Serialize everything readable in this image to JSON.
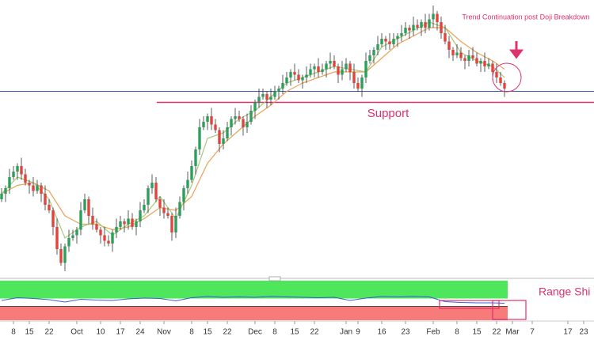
{
  "chart_data": {
    "type": "candlestick",
    "xlim": [
      -0.4,
      149.6
    ],
    "ylim": [
      0,
      100
    ],
    "up_color": "#2e9e5b",
    "down_color": "#e2433b",
    "wick_color": "#333333",
    "xticks": [
      {
        "value": 3,
        "label": "8"
      },
      {
        "value": 7,
        "label": "15"
      },
      {
        "value": 12,
        "label": "22"
      },
      {
        "value": 19,
        "label": "Oct"
      },
      {
        "value": 25,
        "label": "10"
      },
      {
        "value": 30,
        "label": "17"
      },
      {
        "value": 35,
        "label": "24"
      },
      {
        "value": 41,
        "label": "Nov"
      },
      {
        "value": 48,
        "label": "8"
      },
      {
        "value": 52,
        "label": "15"
      },
      {
        "value": 57,
        "label": "22"
      },
      {
        "value": 64,
        "label": "Dec"
      },
      {
        "value": 69,
        "label": "8"
      },
      {
        "value": 74,
        "label": "15"
      },
      {
        "value": 79,
        "label": "22"
      },
      {
        "value": 87,
        "label": "Jan"
      },
      {
        "value": 90,
        "label": "9"
      },
      {
        "value": 96,
        "label": "16"
      },
      {
        "value": 102,
        "label": "23"
      },
      {
        "value": 109,
        "label": "Feb"
      },
      {
        "value": 115,
        "label": "8"
      },
      {
        "value": 120,
        "label": "15"
      },
      {
        "value": 125,
        "label": "22"
      },
      {
        "value": 129,
        "label": "Mar"
      },
      {
        "value": 134,
        "label": "7"
      },
      {
        "value": 143,
        "label": "17"
      },
      {
        "value": 147,
        "label": "23"
      }
    ],
    "open": [
      28,
      30,
      32,
      36,
      38,
      40,
      37,
      34,
      33,
      31,
      33,
      30,
      26,
      24,
      18,
      10,
      5,
      11,
      14,
      15,
      17,
      24,
      28,
      22,
      19,
      17,
      15,
      13,
      12,
      16,
      18,
      20,
      19,
      21,
      18,
      20,
      24,
      26,
      32,
      34,
      28,
      25,
      23,
      22,
      16,
      22,
      27,
      32,
      35,
      40,
      46,
      54,
      56,
      58,
      55,
      53,
      48,
      50,
      54,
      57,
      58,
      57,
      54,
      56,
      60,
      63,
      65,
      66,
      64,
      65,
      67,
      68,
      70,
      72,
      74,
      73,
      71,
      72,
      73,
      75,
      76,
      74,
      75,
      77,
      78,
      76,
      73,
      75,
      77,
      74,
      70,
      68,
      72,
      78,
      80,
      82,
      84,
      86,
      85,
      84,
      86,
      87,
      88,
      90,
      89,
      91,
      90,
      92,
      90,
      93,
      95,
      92,
      88,
      85,
      82,
      80,
      81,
      79,
      78,
      80,
      79,
      77,
      78,
      76,
      77,
      74,
      72,
      70
    ],
    "high": [
      32,
      33,
      39,
      40,
      41,
      43,
      39,
      35,
      36,
      35,
      34,
      33,
      28,
      25,
      21,
      12,
      12,
      17,
      17,
      18,
      27,
      30,
      29,
      25,
      21,
      18,
      18,
      15,
      17,
      21,
      22,
      21,
      24,
      23,
      21,
      27,
      28,
      33,
      37,
      36,
      29,
      28,
      25,
      23,
      25,
      29,
      33,
      38,
      42,
      47,
      57,
      58,
      59,
      61,
      57,
      54,
      53,
      56,
      58,
      61,
      60,
      58,
      59,
      62,
      64,
      68,
      68,
      67,
      68,
      69,
      69,
      73,
      74,
      75,
      77,
      75,
      73,
      76,
      77,
      77,
      79,
      77,
      78,
      81,
      80,
      77,
      78,
      79,
      78,
      77,
      72,
      73,
      81,
      82,
      83,
      87,
      88,
      87,
      88,
      88,
      88,
      91,
      92,
      91,
      94,
      93,
      93,
      95,
      95,
      98,
      96,
      94,
      91,
      87,
      83,
      84,
      83,
      80,
      82,
      83,
      81,
      79,
      81,
      79,
      78,
      77,
      74,
      71
    ],
    "low": [
      27,
      27,
      30,
      35,
      35,
      35,
      33,
      30,
      29,
      30,
      27,
      24,
      23,
      15,
      8,
      4,
      2,
      9,
      13,
      12,
      15,
      23,
      19,
      17,
      16,
      12,
      11,
      11,
      9,
      14,
      17,
      16,
      17,
      17,
      15,
      18,
      23,
      23,
      30,
      27,
      22,
      21,
      21,
      13,
      14,
      21,
      24,
      30,
      34,
      37,
      44,
      53,
      53,
      53,
      52,
      45,
      46,
      49,
      51,
      55,
      56,
      51,
      52,
      55,
      57,
      61,
      64,
      61,
      62,
      64,
      64,
      66,
      69,
      69,
      71,
      70,
      68,
      70,
      72,
      72,
      72,
      73,
      72,
      75,
      75,
      70,
      71,
      74,
      71,
      68,
      67,
      65,
      70,
      77,
      77,
      80,
      83,
      82,
      82,
      83,
      83,
      85,
      87,
      86,
      87,
      89,
      87,
      88,
      89,
      90,
      89,
      86,
      84,
      79,
      78,
      79,
      78,
      75,
      76,
      78,
      76,
      74,
      74,
      75,
      71,
      70,
      69,
      65
    ],
    "close": [
      30,
      32,
      36,
      38,
      40,
      37,
      34,
      33,
      31,
      33,
      30,
      26,
      24,
      18,
      10,
      5,
      11,
      14,
      15,
      17,
      24,
      28,
      22,
      19,
      17,
      15,
      13,
      12,
      16,
      18,
      20,
      19,
      21,
      18,
      20,
      24,
      26,
      32,
      34,
      28,
      25,
      23,
      22,
      16,
      22,
      27,
      32,
      35,
      40,
      46,
      54,
      56,
      58,
      55,
      53,
      48,
      50,
      54,
      57,
      58,
      57,
      54,
      56,
      60,
      63,
      65,
      66,
      64,
      65,
      67,
      68,
      70,
      72,
      74,
      73,
      71,
      72,
      73,
      75,
      76,
      74,
      75,
      77,
      78,
      76,
      73,
      75,
      77,
      74,
      70,
      68,
      72,
      78,
      80,
      82,
      84,
      86,
      85,
      84,
      86,
      87,
      88,
      90,
      89,
      91,
      90,
      92,
      90,
      93,
      95,
      92,
      88,
      85,
      82,
      80,
      81,
      79,
      78,
      80,
      79,
      77,
      78,
      76,
      77,
      74,
      72,
      70,
      68
    ],
    "moving_averages": [
      {
        "color": "#e8a35a",
        "x": [
          0,
          4,
          8,
          12,
          16,
          20,
          24,
          28,
          32,
          36,
          40,
          44,
          48,
          52,
          56,
          60,
          64,
          68,
          72,
          76,
          80,
          84,
          88,
          92,
          96,
          100,
          104,
          108,
          112,
          116,
          120,
          124,
          127
        ],
        "values": [
          30,
          33,
          34,
          31,
          22,
          19,
          19,
          17,
          18,
          21,
          25,
          24,
          29,
          41,
          48,
          53,
          58,
          62,
          67,
          70,
          72,
          74,
          74,
          74,
          79,
          84,
          87,
          90,
          90,
          85,
          81,
          78,
          75
        ]
      },
      {
        "color": "#a8c97a",
        "x": [
          0,
          4,
          8,
          12,
          16,
          20,
          24,
          28,
          32,
          36,
          40,
          44,
          48,
          52,
          56,
          60,
          64,
          68,
          72,
          76,
          80,
          84,
          88,
          92,
          96,
          100,
          104,
          108,
          112,
          116,
          120,
          124,
          127
        ],
        "values": [
          30,
          36,
          34,
          28,
          14,
          18,
          20,
          15,
          19,
          22,
          29,
          21,
          33,
          50,
          52,
          57,
          60,
          65,
          70,
          72,
          74,
          76,
          75,
          74,
          83,
          86,
          89,
          92,
          90,
          81,
          78,
          76,
          72
        ]
      }
    ],
    "hlines": [
      {
        "value": 67,
        "color": "#3b5aa8",
        "x_from": -0.4
      },
      {
        "value": 63,
        "color": "#e0306e",
        "x_from": 39.2
      }
    ],
    "annotations": {
      "support": "Support",
      "trend": "Trend Continuation  post Doji Breakdown",
      "range": "Range Shi"
    },
    "oscillator": {
      "color": "#3b5fd0",
      "ylim": [
        0,
        100
      ],
      "zones": [
        {
          "from": 55,
          "to": 100,
          "color": "#4ee65a"
        },
        {
          "from": 0,
          "to": 35,
          "color": "#f77b78"
        }
      ],
      "x": [
        0,
        4,
        8,
        12,
        16,
        20,
        24,
        28,
        32,
        36,
        40,
        44,
        48,
        52,
        56,
        60,
        64,
        68,
        72,
        76,
        80,
        84,
        88,
        92,
        96,
        100,
        104,
        108,
        112,
        116,
        120,
        124,
        127
      ],
      "values": [
        50,
        57,
        55,
        52,
        46,
        53,
        51,
        50,
        54,
        56,
        55,
        49,
        57,
        60,
        58,
        59,
        58,
        60,
        59,
        58,
        57,
        58,
        50,
        56,
        60,
        59,
        60,
        59,
        47,
        45,
        44,
        44,
        43
      ]
    }
  }
}
